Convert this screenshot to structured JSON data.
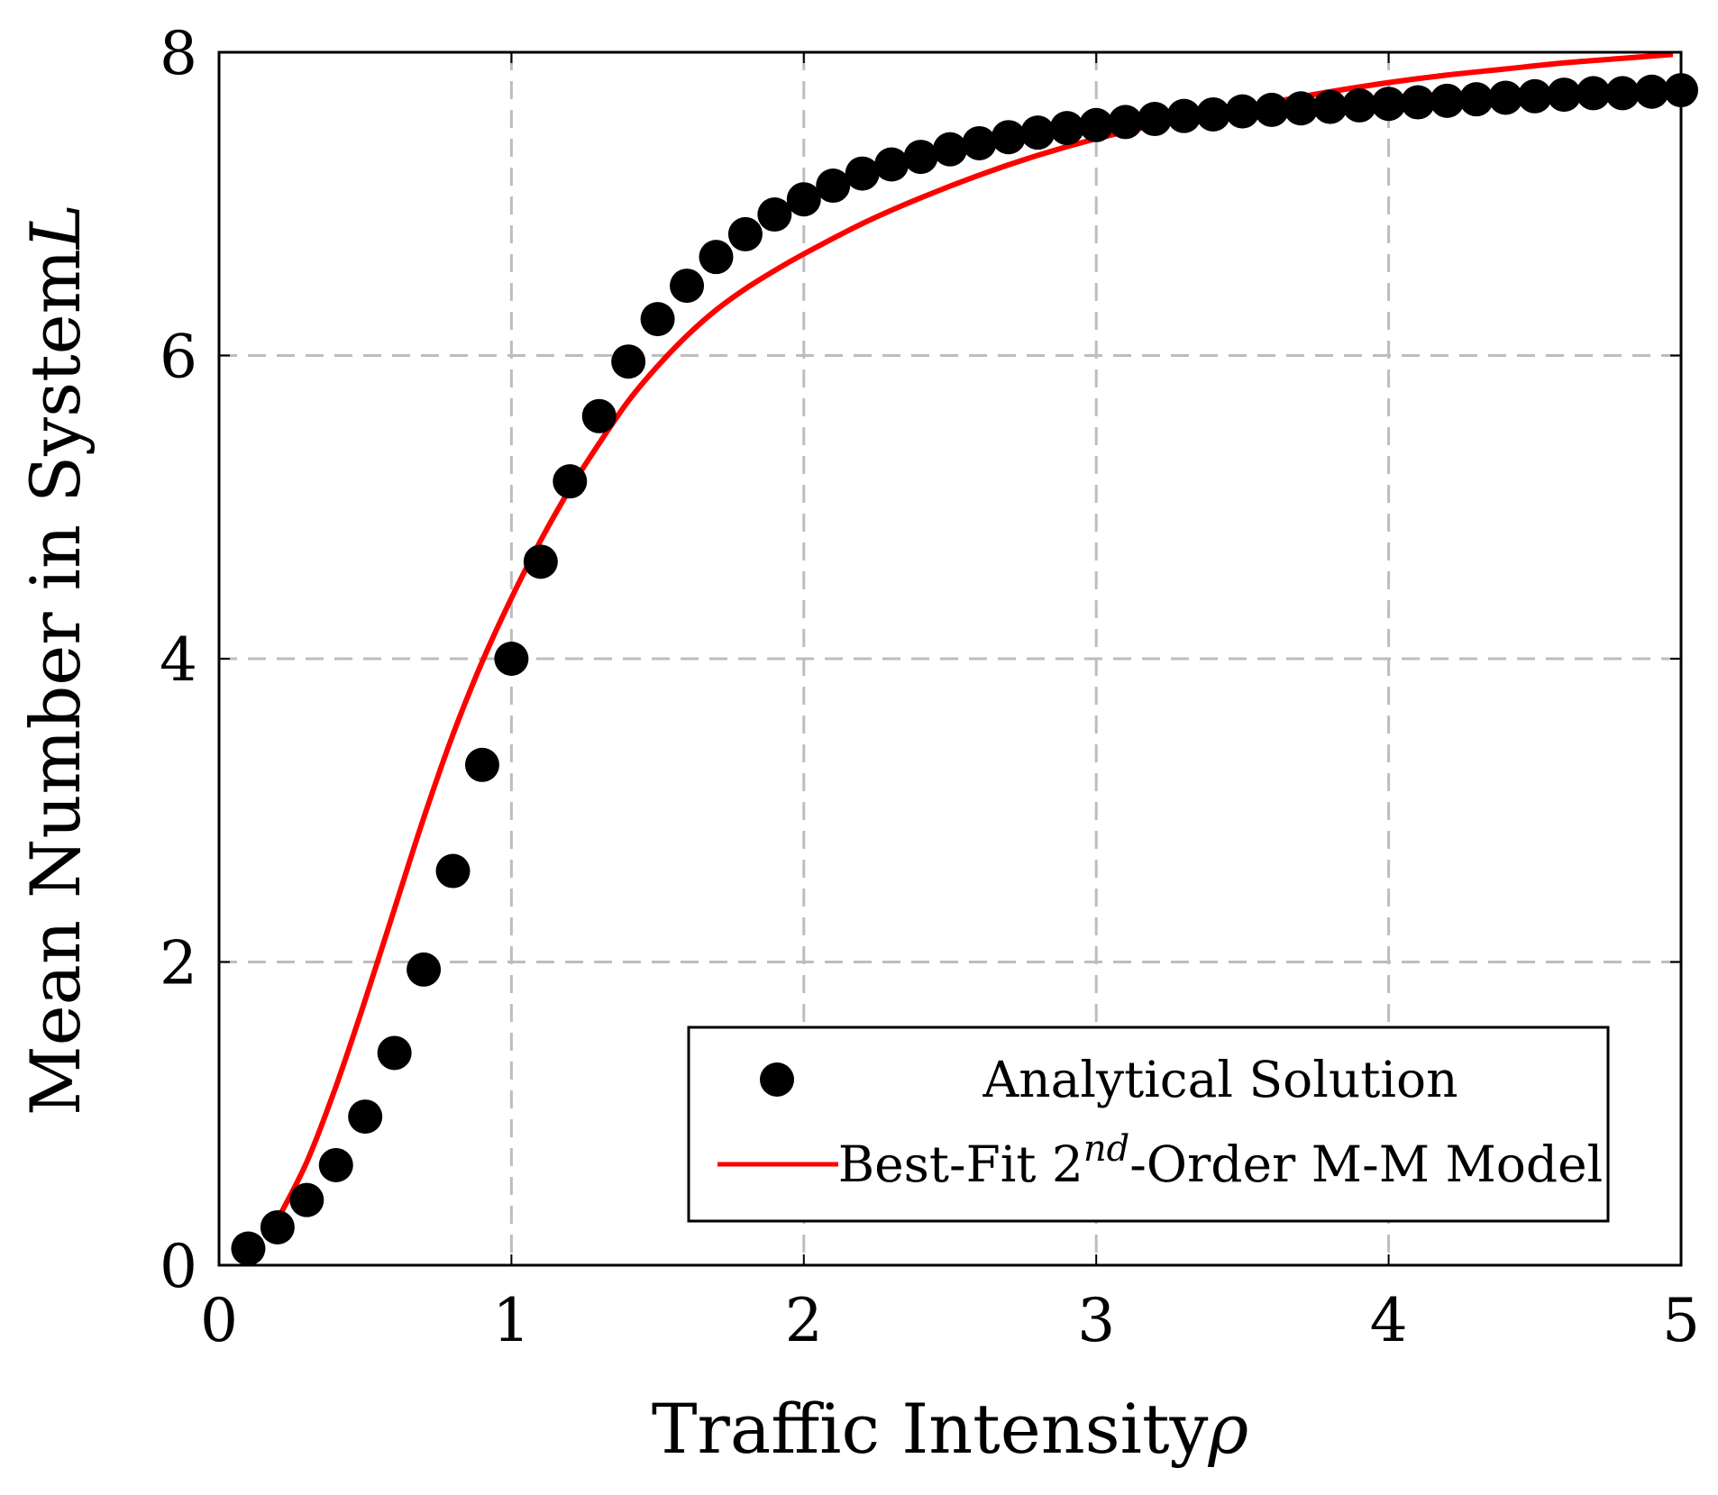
{
  "chart_data": {
    "type": "scatter",
    "title": "",
    "xlabel": "Traffic Intensity",
    "xlabel_symbol": "ρ",
    "ylabel": "Mean Number in System",
    "ylabel_symbol": "L",
    "xlim": [
      0,
      5
    ],
    "ylim": [
      0,
      8
    ],
    "xticks": [
      "0",
      "1",
      "2",
      "3",
      "4",
      "5"
    ],
    "yticks": [
      "0",
      "2",
      "4",
      "6",
      "8"
    ],
    "grid": true,
    "legend_position": "bottom-right",
    "series": [
      {
        "name": "Analytical Solution",
        "kind": "markers",
        "color": "#000000",
        "x": [
          0.1,
          0.2,
          0.3,
          0.4,
          0.5,
          0.6,
          0.7,
          0.8,
          0.9,
          1.0,
          1.1,
          1.2,
          1.3,
          1.4,
          1.5,
          1.6,
          1.7,
          1.8,
          1.9,
          2.0,
          2.1,
          2.2,
          2.3,
          2.4,
          2.5,
          2.6,
          2.7,
          2.8,
          2.9,
          3.0,
          3.1,
          3.2,
          3.3,
          3.4,
          3.5,
          3.6,
          3.7,
          3.8,
          3.9,
          4.0,
          4.1,
          4.2,
          4.3,
          4.4,
          4.5,
          4.6,
          4.7,
          4.8,
          4.9,
          5.0
        ],
        "y": [
          0.11,
          0.25,
          0.43,
          0.66,
          0.98,
          1.4,
          1.95,
          2.6,
          3.3,
          4.0,
          4.64,
          5.17,
          5.6,
          5.96,
          6.24,
          6.46,
          6.65,
          6.8,
          6.93,
          7.03,
          7.12,
          7.2,
          7.26,
          7.31,
          7.36,
          7.4,
          7.44,
          7.47,
          7.5,
          7.52,
          7.54,
          7.56,
          7.58,
          7.59,
          7.61,
          7.62,
          7.63,
          7.64,
          7.65,
          7.66,
          7.67,
          7.68,
          7.69,
          7.7,
          7.71,
          7.72,
          7.73,
          7.73,
          7.74,
          7.75
        ]
      },
      {
        "name_prefix": "Best-Fit 2",
        "name_superscript": "nd",
        "name_suffix": "-Order M-M Model",
        "kind": "line",
        "color": "#ff0000",
        "x": [
          0.2,
          0.3,
          0.4,
          0.5,
          0.6,
          0.7,
          0.8,
          0.9,
          1.0,
          1.1,
          1.2,
          1.3,
          1.4,
          1.5,
          1.6,
          1.7,
          1.8,
          1.9,
          2.0,
          2.2,
          2.4,
          2.6,
          2.8,
          3.0,
          3.2,
          3.4,
          3.6,
          3.8,
          4.0,
          4.2,
          4.4,
          4.6,
          4.8,
          5.0
        ],
        "y": [
          0.3,
          0.68,
          1.18,
          1.75,
          2.35,
          2.95,
          3.5,
          3.98,
          4.4,
          4.78,
          5.12,
          5.42,
          5.7,
          5.93,
          6.13,
          6.3,
          6.44,
          6.56,
          6.67,
          6.87,
          7.04,
          7.19,
          7.32,
          7.43,
          7.52,
          7.6,
          7.67,
          7.74,
          7.8,
          7.85,
          7.89,
          7.93,
          7.96,
          7.99
        ]
      }
    ]
  }
}
